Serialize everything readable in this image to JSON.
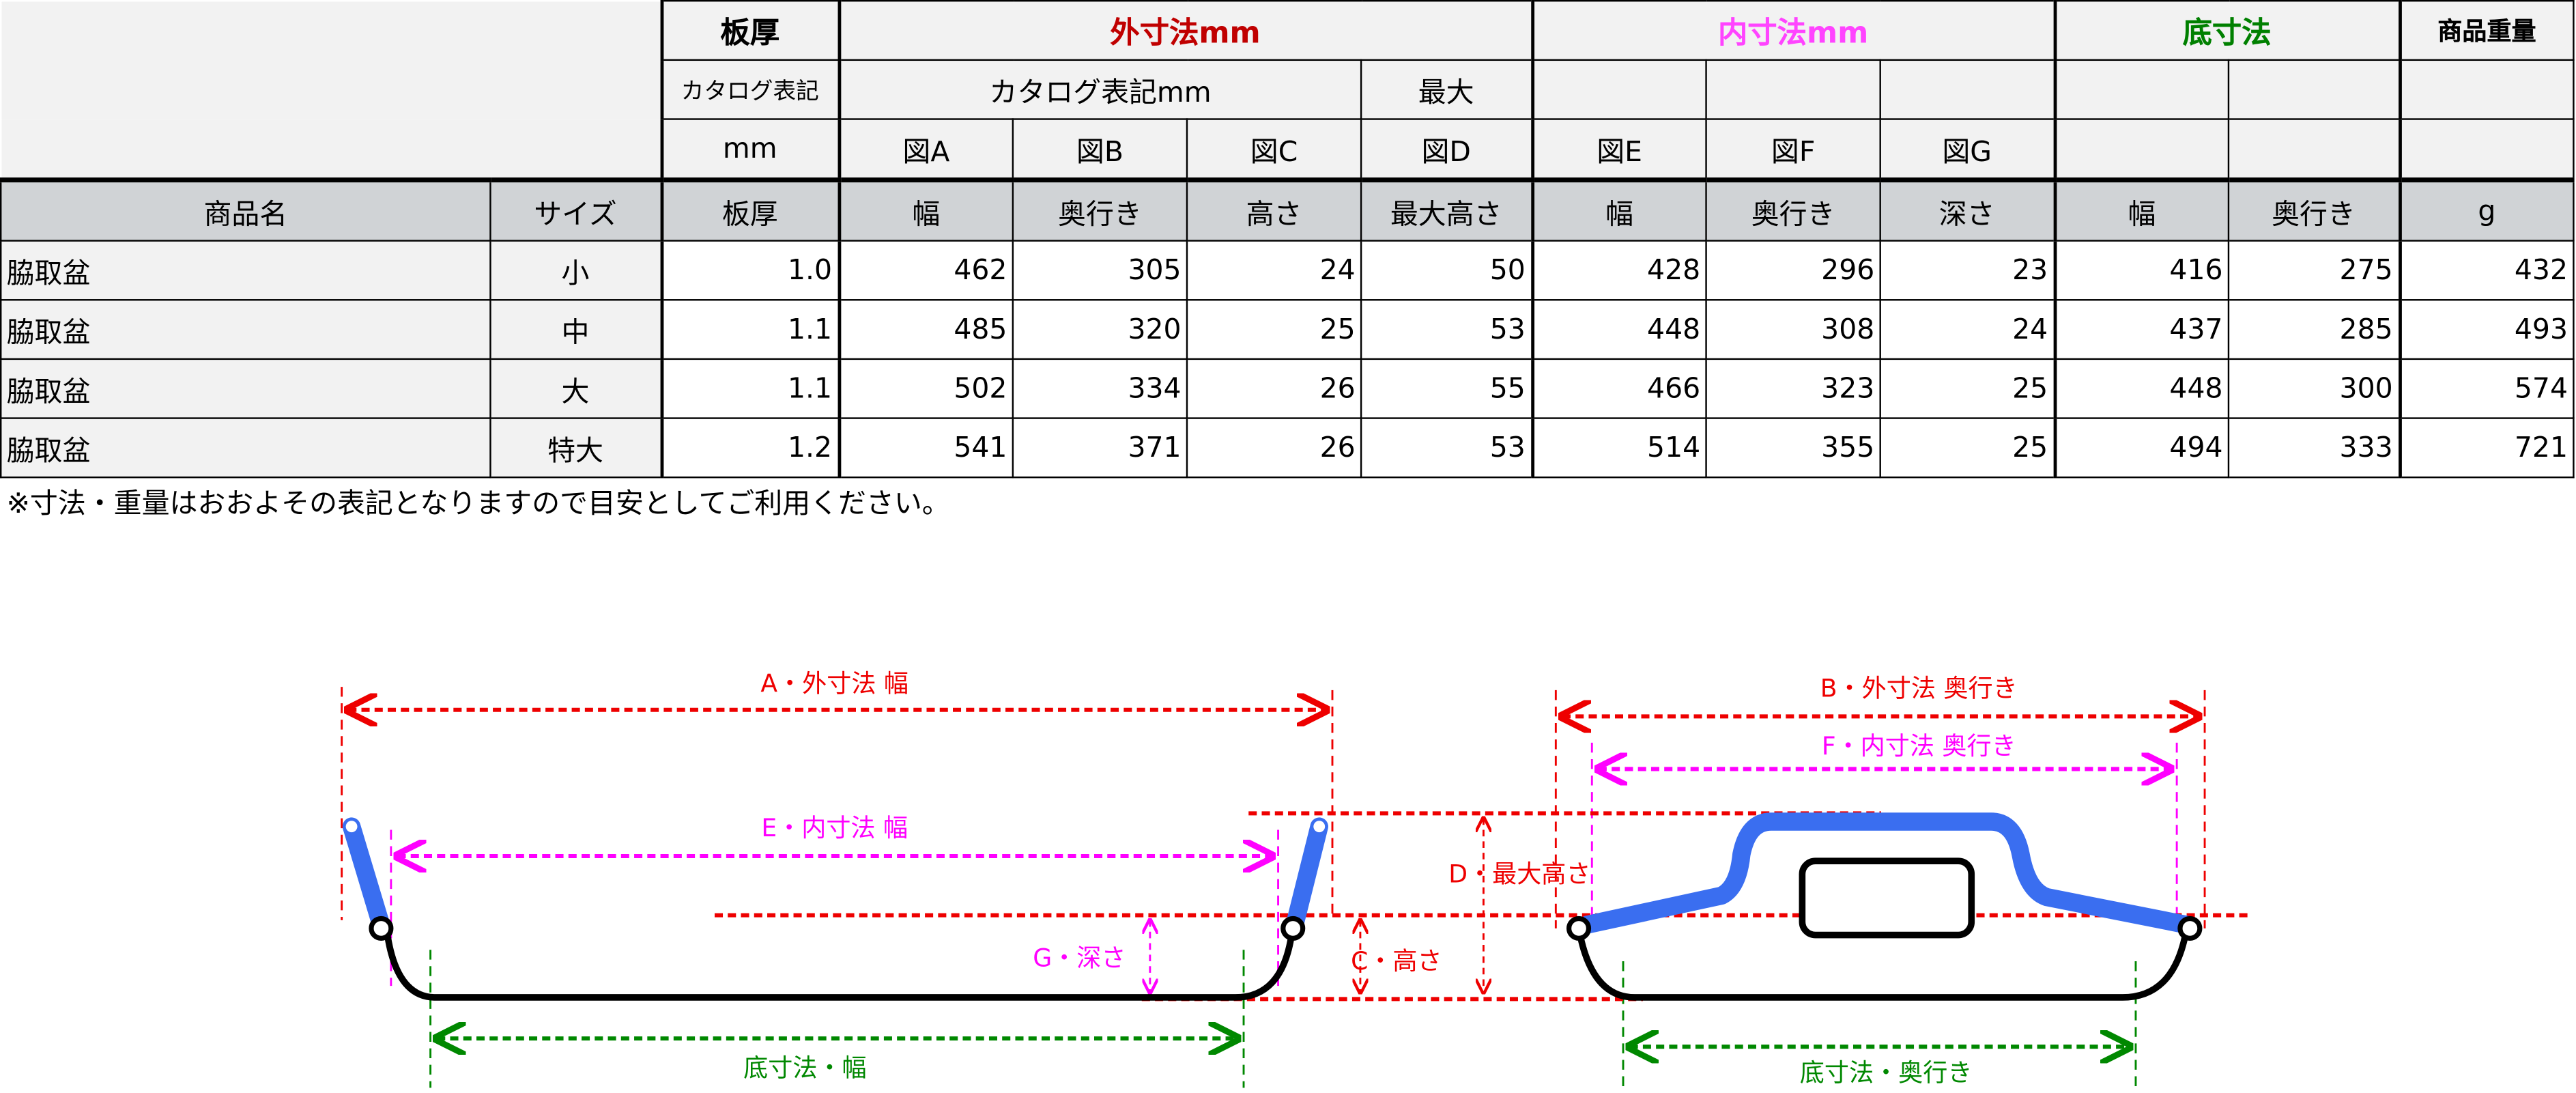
{
  "header": {
    "row1": {
      "thickness": "板厚",
      "outer": "外寸法mm",
      "inner": "内寸法mm",
      "bottom": "底寸法",
      "weight": "商品重量"
    },
    "row2": {
      "catalog": "カタログ表記",
      "catalog_mm": "カタログ表記mm",
      "max": "最大"
    },
    "row3": {
      "mm": "mm",
      "fig": [
        "図A",
        "図B",
        "図C",
        "図D",
        "図E",
        "図F",
        "図G"
      ]
    },
    "columns": [
      "商品名",
      "サイズ",
      "板厚",
      "幅",
      "奥行き",
      "高さ",
      "最大高さ",
      "幅",
      "奥行き",
      "深さ",
      "幅",
      "奥行き",
      "g"
    ]
  },
  "colors": {
    "outer": "#c00000",
    "inner": "#ff44ff",
    "bottom": "#008000",
    "handle": "#3a6ef0"
  },
  "rows": [
    {
      "name": "脇取盆",
      "size": "小",
      "thickness": "1.0",
      "a": "462",
      "b": "305",
      "c": "24",
      "d": "50",
      "e": "428",
      "f": "296",
      "g": "23",
      "bw": "416",
      "bd": "275",
      "weight": "432"
    },
    {
      "name": "脇取盆",
      "size": "中",
      "thickness": "1.1",
      "a": "485",
      "b": "320",
      "c": "25",
      "d": "53",
      "e": "448",
      "f": "308",
      "g": "24",
      "bw": "437",
      "bd": "285",
      "weight": "493"
    },
    {
      "name": "脇取盆",
      "size": "大",
      "thickness": "1.1",
      "a": "502",
      "b": "334",
      "c": "26",
      "d": "55",
      "e": "466",
      "f": "323",
      "g": "25",
      "bw": "448",
      "bd": "300",
      "weight": "574"
    },
    {
      "name": "脇取盆",
      "size": "特大",
      "thickness": "1.2",
      "a": "541",
      "b": "371",
      "c": "26",
      "d": "53",
      "e": "514",
      "f": "355",
      "g": "25",
      "bw": "494",
      "bd": "333",
      "weight": "721"
    }
  ],
  "note": "※寸法・重量はおおよその表記となりますので目安としてご利用ください。",
  "diagram": {
    "a": "A・外寸法 幅",
    "e": "E・内寸法 幅",
    "g": "G・深さ",
    "c": "C・高さ",
    "d": "D・最大高さ",
    "bottom_w": "底寸法・幅",
    "b": "B・外寸法 奥行き",
    "f": "F・内寸法 奥行き",
    "bottom_d": "底寸法・奥行き"
  }
}
